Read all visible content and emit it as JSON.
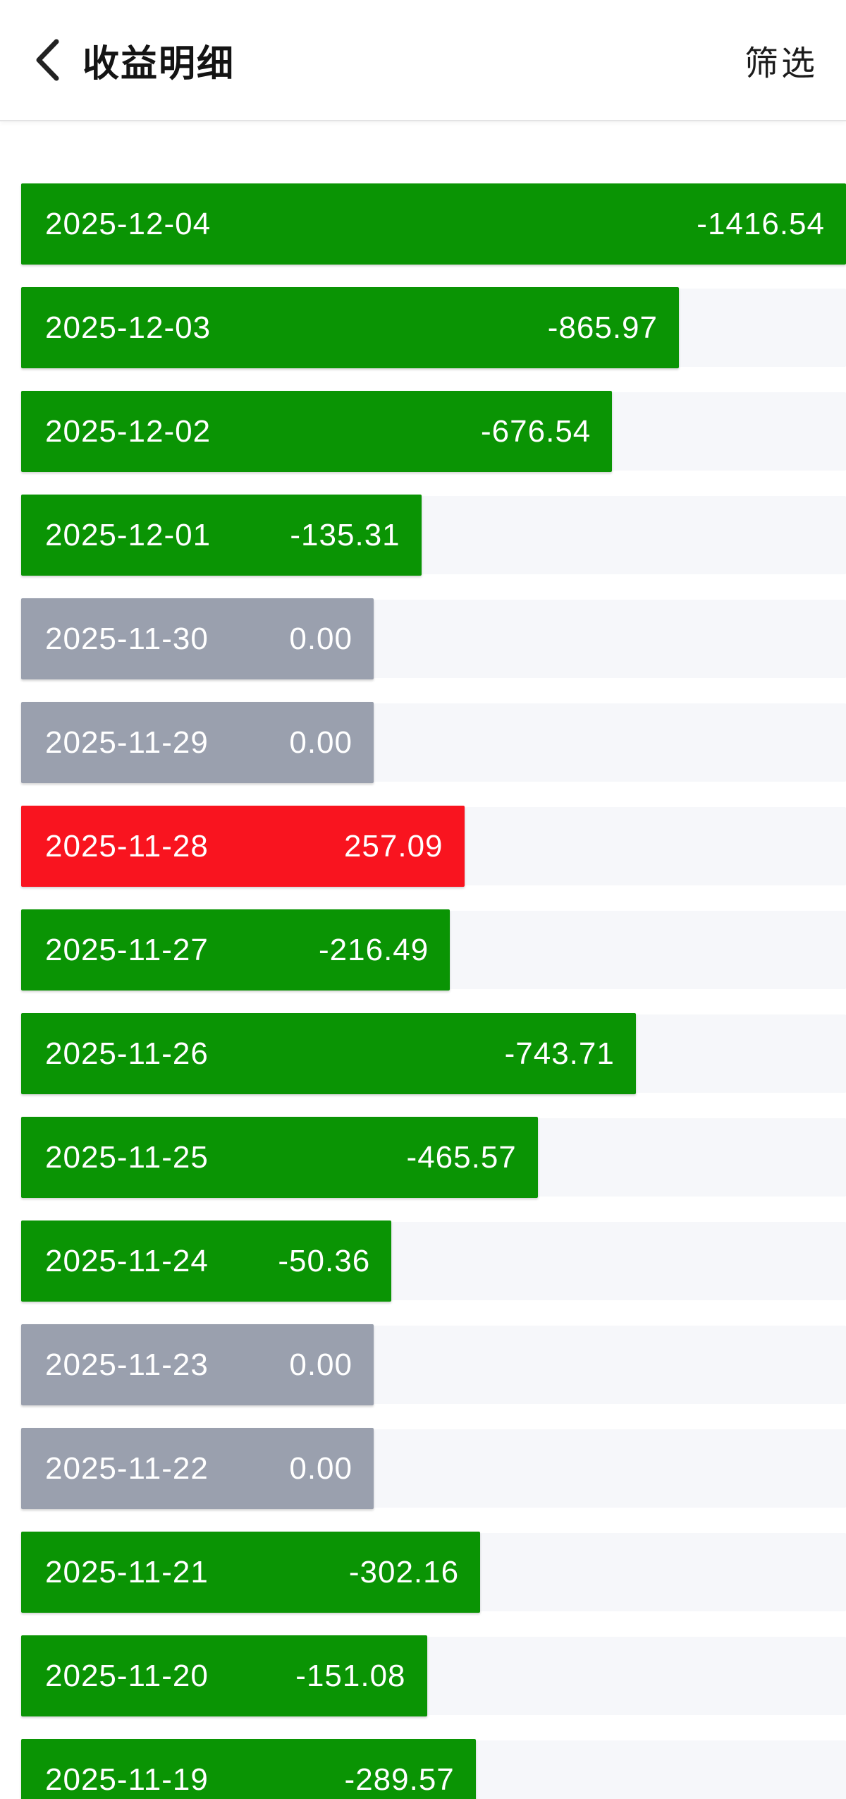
{
  "header": {
    "title": "收益明细",
    "filter_label": "筛选",
    "back_icon": "chevron-left-icon"
  },
  "chart_data": {
    "type": "bar",
    "orientation": "horizontal",
    "title": "收益明细",
    "categories": [
      "2025-12-04",
      "2025-12-03",
      "2025-12-02",
      "2025-12-01",
      "2025-11-30",
      "2025-11-29",
      "2025-11-28",
      "2025-11-27",
      "2025-11-26",
      "2025-11-25",
      "2025-11-24",
      "2025-11-23",
      "2025-11-22",
      "2025-11-21",
      "2025-11-20",
      "2025-11-19"
    ],
    "values": [
      -1416.54,
      -865.97,
      -676.54,
      -135.31,
      0.0,
      0.0,
      257.09,
      -216.49,
      -743.71,
      -465.57,
      -50.36,
      0.0,
      0.0,
      -302.16,
      -151.08,
      -289.57
    ],
    "value_decimals": 2,
    "legend": "none",
    "grid": false,
    "colors": {
      "negative_bar": "#0a9404",
      "positive_bar": "#f9141f",
      "zero_bar": "#9aa0ae",
      "track": "#f6f7fa",
      "bar_text": "#ffffff"
    }
  }
}
